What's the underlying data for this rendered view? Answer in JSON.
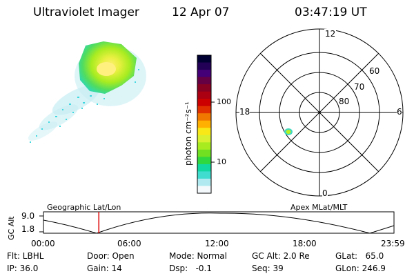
{
  "header": {
    "title": "Ultraviolet Imager",
    "date": "12 Apr 07",
    "time": "03:47:19 UT"
  },
  "colorbar": {
    "label": "photon cm⁻²s⁻¹",
    "ticks": [
      "100",
      "10"
    ],
    "colors": [
      "#000033",
      "#220055",
      "#440077",
      "#660044",
      "#880022",
      "#aa0011",
      "#cc0000",
      "#e03000",
      "#f07800",
      "#ffb000",
      "#f8e818",
      "#d8f030",
      "#a8ec20",
      "#70e020",
      "#30d840",
      "#10d8a0",
      "#40dcd0",
      "#b0eaf0",
      "#f4fafc"
    ]
  },
  "polar": {
    "labels": {
      "top": "12",
      "left": "18",
      "right": "6",
      "bottom": "0",
      "r60": "60",
      "r70": "70",
      "r80": "80"
    }
  },
  "timeline": {
    "y_axis_label": "GC Alt",
    "y_ticks": [
      "9.0",
      "1.8"
    ],
    "left_label": "Geographic Lat/Lon",
    "right_label": "Apex MLat/MLT",
    "x_ticks": [
      "00:00",
      "06:00",
      "12:00",
      "18:00",
      "23:59"
    ],
    "marker_time": "03:47:19"
  },
  "info": {
    "flt": "Flt: LBHL",
    "ip": "IP: 36.0",
    "door": "Door: Open",
    "gain": "Gain: 14",
    "mode": "Mode: Normal",
    "dsp": "Dsp:   -0.1",
    "gcalt": "GC Alt: 2.0 Re",
    "seq": "Seq: 39",
    "glat": "GLat:   65.0",
    "glon": "GLon: 246.9"
  },
  "colors": {
    "marker": "#dd0000",
    "blob_core": "#fff060",
    "blob_mid": "#a8ec20",
    "blob_outer": "#30d8a0",
    "haze": "#b0e8f0"
  }
}
